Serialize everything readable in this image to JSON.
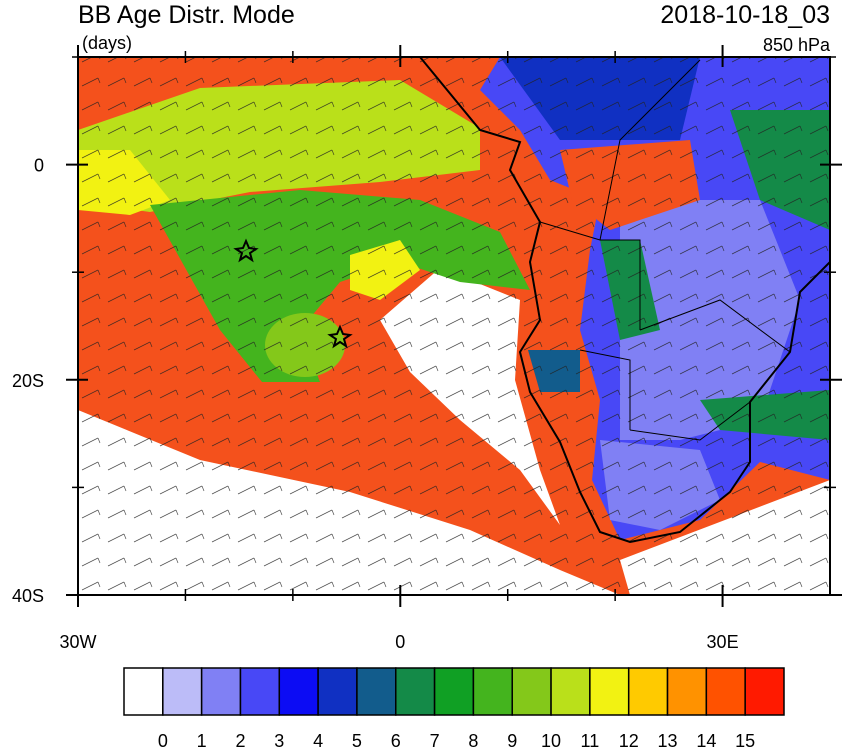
{
  "chart_data": {
    "type": "map",
    "title": "BB Age Distr. Mode",
    "units": "(days)",
    "date": "2018-10-18_03",
    "level": "850 hPa",
    "xlim": [
      -30,
      40
    ],
    "ylim": [
      -40,
      10
    ],
    "xticks": [
      {
        "value": -30,
        "label": "30W"
      },
      0,
      {
        "value": 30,
        "label": "30E"
      }
    ],
    "yticks": [
      0,
      {
        "value": -20,
        "label": "20S"
      },
      {
        "value": -40,
        "label": "40S"
      }
    ],
    "minor_xticks": [
      -20,
      -10,
      10,
      20
    ],
    "minor_yticks": [
      10,
      -10,
      -30
    ],
    "colorbar": {
      "colors": [
        "#ffffff",
        "#bcbcf8",
        "#8080f4",
        "#4848f6",
        "#0c0cf4",
        "#1030c2",
        "#125c8c",
        "#148a48",
        "#10a024",
        "#44b41e",
        "#84c81a",
        "#bae01a",
        "#f2f212",
        "#ffca00",
        "#ff9200",
        "#ff5200",
        "#ff1a00"
      ],
      "levels": [
        0,
        1,
        2,
        3,
        4,
        5,
        6,
        7,
        8,
        9,
        10,
        11,
        12,
        13,
        14,
        15
      ]
    }
  }
}
